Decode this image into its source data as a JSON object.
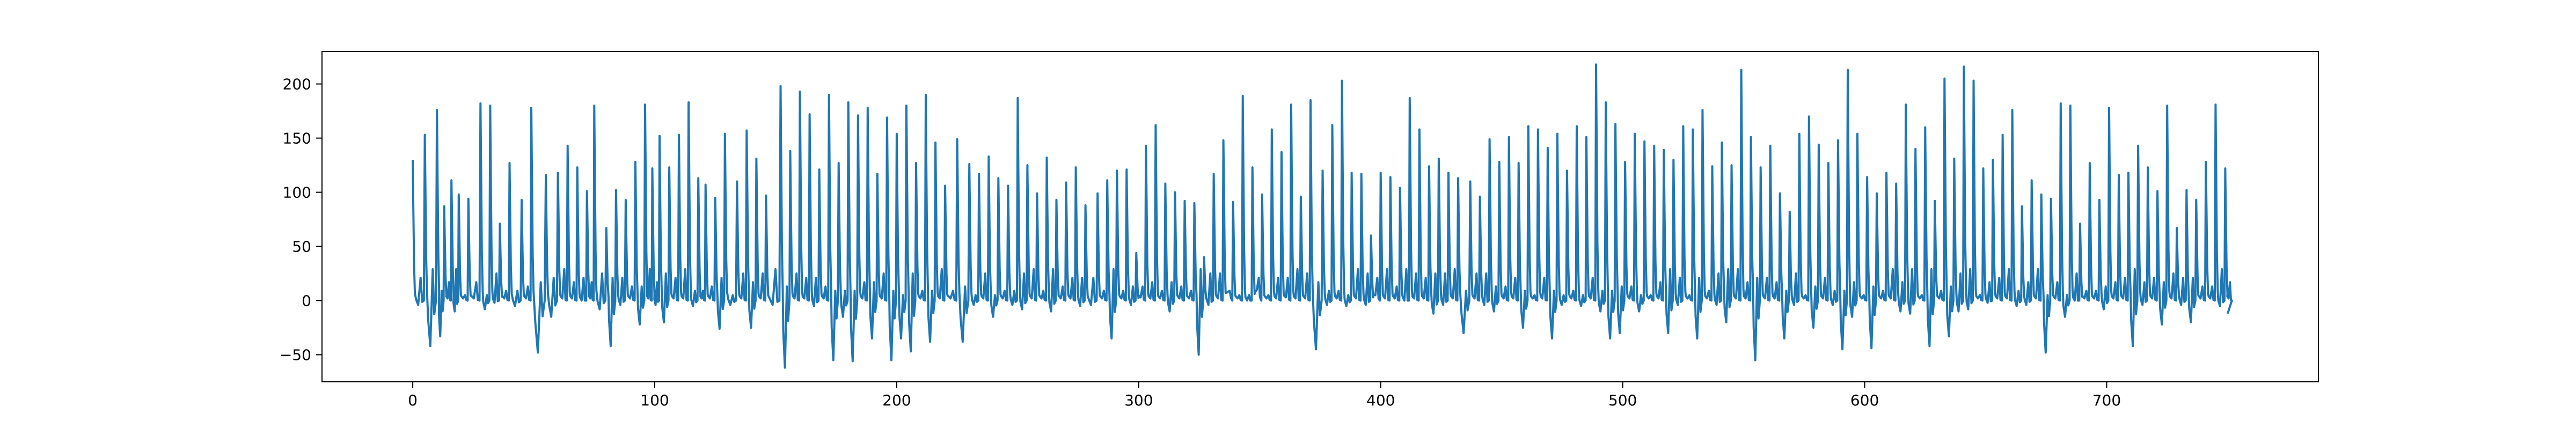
{
  "chart_data": {
    "type": "line",
    "title": "",
    "xlabel": "",
    "ylabel": "",
    "xlim": [
      -37.5,
      787.5
    ],
    "ylim": [
      -75,
      230
    ],
    "xticks": [
      0,
      100,
      200,
      300,
      400,
      500,
      600,
      700
    ],
    "xtick_labels": [
      "0",
      "100",
      "200",
      "300",
      "400",
      "500",
      "600",
      "700"
    ],
    "yticks": [
      -50,
      0,
      50,
      100,
      150,
      200
    ],
    "ytick_labels": [
      "−50",
      "0",
      "50",
      "100",
      "150",
      "200"
    ],
    "grid": false,
    "legend": "none",
    "series": [
      {
        "color": "#1f77b4",
        "x": [
          0,
          5,
          10,
          13,
          16,
          19,
          23,
          28,
          32,
          36,
          40,
          45,
          49,
          55,
          60,
          64,
          68,
          72,
          75,
          80,
          84,
          88,
          92,
          96,
          99,
          102,
          106,
          110,
          114,
          118,
          121,
          125,
          129,
          134,
          138,
          142,
          146,
          152,
          156,
          160,
          164,
          168,
          172,
          176,
          180,
          184,
          188,
          192,
          196,
          200,
          204,
          208,
          212,
          216,
          220,
          225,
          230,
          234,
          238,
          242,
          246,
          250,
          254,
          258,
          262,
          266,
          270,
          274,
          278,
          283,
          287,
          291,
          295,
          299,
          303,
          307,
          311,
          315,
          319,
          323,
          327,
          331,
          335,
          339,
          343,
          347,
          351,
          355,
          359,
          363,
          367,
          371,
          376,
          380,
          384,
          388,
          392,
          396,
          400,
          404,
          408,
          412,
          416,
          420,
          424,
          428,
          432,
          437,
          441,
          445,
          449,
          453,
          457,
          461,
          465,
          469,
          473,
          477,
          481,
          485,
          489,
          493,
          497,
          501,
          505,
          509,
          513,
          517,
          521,
          525,
          529,
          533,
          537,
          541,
          545,
          549,
          553,
          557,
          561,
          565,
          569,
          573,
          577,
          581,
          585,
          589,
          593,
          597,
          601,
          605,
          609,
          613,
          617,
          621,
          625,
          629,
          633,
          637,
          641,
          645,
          649,
          653,
          657,
          661,
          665,
          669,
          673,
          677,
          681,
          685,
          689,
          693,
          697,
          701,
          705,
          709,
          713,
          717,
          721,
          725,
          729,
          733,
          737,
          741,
          745,
          749
        ],
        "peaks": [
          130,
          153,
          176,
          87,
          111,
          98,
          94,
          182,
          180,
          71,
          127,
          93,
          178,
          116,
          118,
          143,
          123,
          101,
          180,
          67,
          102,
          93,
          128,
          181,
          122,
          152,
          123,
          153,
          183,
          113,
          107,
          95,
          154,
          110,
          157,
          131,
          97,
          198,
          138,
          193,
          172,
          121,
          190,
          127,
          183,
          171,
          178,
          117,
          169,
          154,
          180,
          127,
          190,
          146,
          106,
          149,
          126,
          117,
          133,
          113,
          106,
          187,
          125,
          99,
          132,
          93,
          109,
          123,
          88,
          99,
          111,
          120,
          121,
          44,
          143,
          162,
          108,
          100,
          92,
          90,
          40,
          117,
          148,
          91,
          189,
          123,
          98,
          158,
          137,
          181,
          96,
          185,
          120,
          162,
          203,
          118,
          117,
          60,
          118,
          114,
          104,
          187,
          158,
          124,
          131,
          118,
          113,
          110,
          96,
          149,
          128,
          151,
          127,
          161,
          158,
          141,
          154,
          120,
          161,
          151,
          218,
          183,
          163,
          128,
          154,
          147,
          143,
          139,
          130,
          161,
          158,
          176,
          124,
          146,
          125,
          213,
          151,
          123,
          143,
          99,
          82,
          154,
          170,
          144,
          127,
          148,
          213,
          154,
          114,
          99,
          118,
          108,
          181,
          140,
          160,
          92,
          205,
          131,
          216,
          203,
          122
        ],
        "troughs": [
          -42,
          -33,
          -10,
          -8,
          -2,
          -5,
          -48,
          -15,
          0,
          -8,
          -42,
          -22,
          -20,
          -5,
          -26,
          -25,
          -62,
          -5,
          -55,
          -15,
          -56,
          -35,
          -55,
          -35,
          -47,
          -38,
          -38,
          -15,
          -8,
          -10,
          -5,
          -35,
          3,
          -10,
          -50,
          8,
          0,
          10,
          3,
          -45,
          -5,
          5,
          0,
          -12,
          -30,
          -10,
          -25,
          -35,
          -5,
          -10,
          -35,
          -30,
          -10,
          -30,
          -35,
          -20,
          -55,
          -35,
          -25,
          -45,
          -15,
          -44,
          -10,
          -12
        ]
      }
    ]
  }
}
